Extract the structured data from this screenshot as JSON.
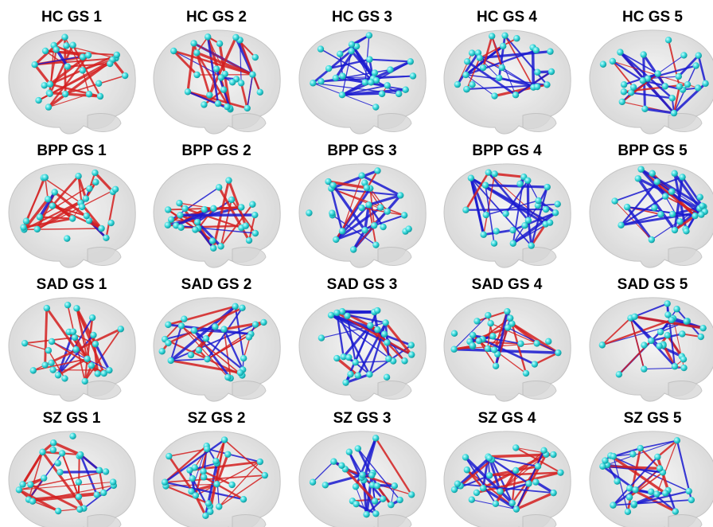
{
  "panels": [
    [
      "HC GS 1",
      "HC GS 2",
      "HC GS 3",
      "HC GS 4",
      "HC GS 5"
    ],
    [
      "BPP GS 1",
      "BPP GS 2",
      "BPP GS 3",
      "BPP GS 4",
      "BPP GS 5"
    ],
    [
      "SAD GS 1",
      "SAD GS 2",
      "SAD GS 3",
      "SAD GS 4",
      "SAD GS 5"
    ],
    [
      "SZ GS 1",
      "SZ GS 2",
      "SZ GS 3",
      "SZ GS 4",
      "SZ GS 5"
    ]
  ]
}
